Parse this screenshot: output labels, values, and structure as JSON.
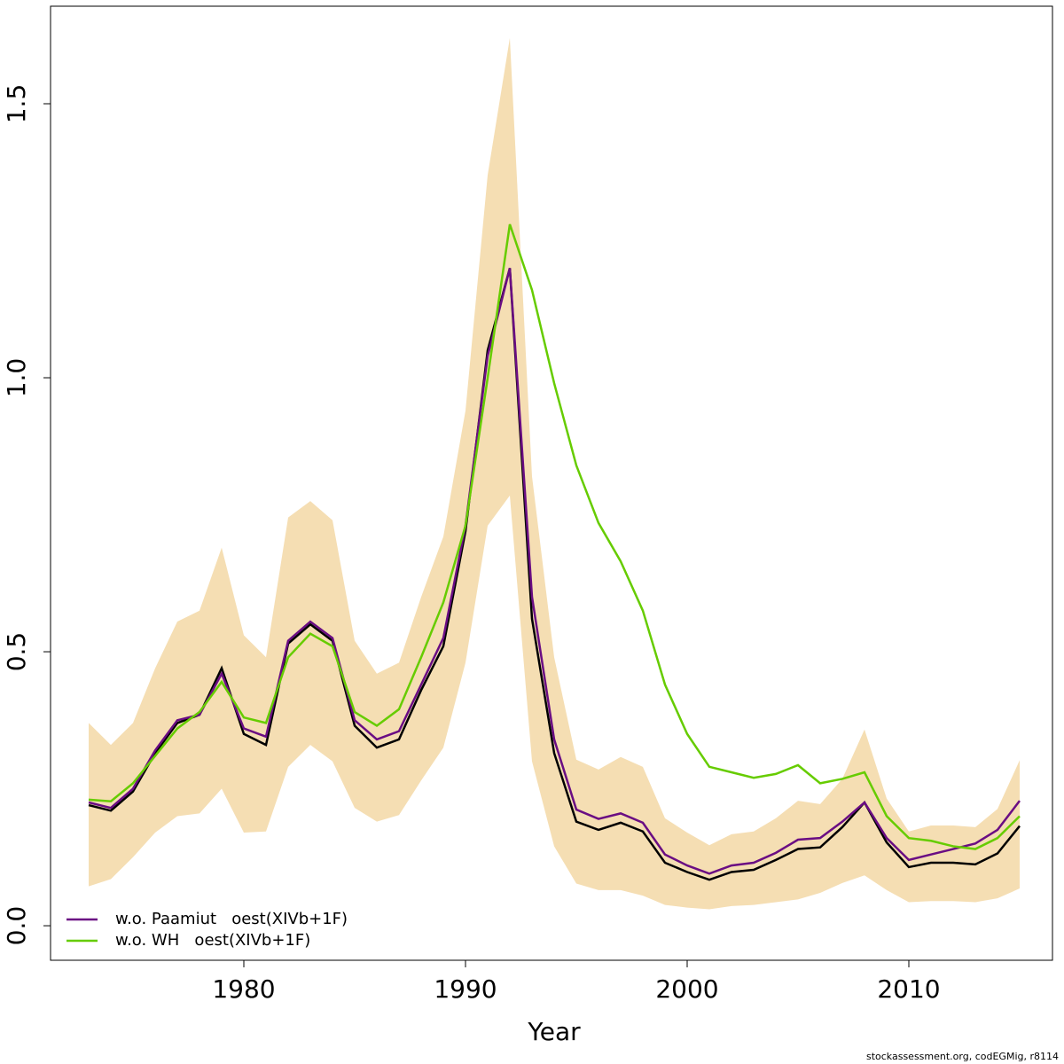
{
  "chart_data": {
    "type": "line",
    "xlabel": "Year",
    "footnote": "stockassessment.org, codEGMig, r8114",
    "x": [
      1973,
      1974,
      1975,
      1976,
      1977,
      1978,
      1979,
      1980,
      1981,
      1982,
      1983,
      1984,
      1985,
      1986,
      1987,
      1988,
      1989,
      1990,
      1991,
      1992,
      1993,
      1994,
      1995,
      1996,
      1997,
      1998,
      1999,
      2000,
      2001,
      2002,
      2003,
      2004,
      2005,
      2006,
      2007,
      2008,
      2009,
      2010,
      2011,
      2012,
      2013,
      2014,
      2015
    ],
    "band": {
      "color": "#f5deb3",
      "lower": [
        0.072,
        0.085,
        0.125,
        0.17,
        0.2,
        0.205,
        0.25,
        0.17,
        0.172,
        0.29,
        0.33,
        0.3,
        0.215,
        0.19,
        0.202,
        0.265,
        0.325,
        0.48,
        0.73,
        0.785,
        0.3,
        0.145,
        0.077,
        0.065,
        0.065,
        0.055,
        0.038,
        0.033,
        0.03,
        0.036,
        0.038,
        0.043,
        0.048,
        0.06,
        0.078,
        0.092,
        0.065,
        0.043,
        0.045,
        0.045,
        0.043,
        0.05,
        0.068
      ],
      "upper": [
        0.37,
        0.33,
        0.37,
        0.47,
        0.555,
        0.575,
        0.69,
        0.53,
        0.49,
        0.745,
        0.775,
        0.74,
        0.52,
        0.46,
        0.48,
        0.6,
        0.71,
        0.94,
        1.37,
        1.62,
        0.82,
        0.49,
        0.303,
        0.285,
        0.308,
        0.29,
        0.196,
        0.17,
        0.147,
        0.167,
        0.172,
        0.196,
        0.228,
        0.222,
        0.268,
        0.358,
        0.232,
        0.172,
        0.183,
        0.183,
        0.18,
        0.213,
        0.302
      ]
    },
    "series": [
      {
        "color": "#000000",
        "values": [
          0.22,
          0.21,
          0.245,
          0.315,
          0.37,
          0.385,
          0.47,
          0.35,
          0.33,
          0.515,
          0.55,
          0.52,
          0.365,
          0.325,
          0.34,
          0.43,
          0.51,
          0.72,
          1.05,
          1.2,
          0.56,
          0.315,
          0.19,
          0.175,
          0.188,
          0.172,
          0.115,
          0.098,
          0.084,
          0.098,
          0.102,
          0.12,
          0.14,
          0.143,
          0.18,
          0.225,
          0.152,
          0.107,
          0.115,
          0.115,
          0.112,
          0.132,
          0.182
        ]
      },
      {
        "name": "w.o. Paamiut   oest(XIVb+1F)",
        "color": "#6a0d83",
        "values": [
          0.225,
          0.215,
          0.25,
          0.32,
          0.375,
          0.385,
          0.46,
          0.36,
          0.345,
          0.52,
          0.555,
          0.525,
          0.375,
          0.34,
          0.355,
          0.44,
          0.525,
          0.73,
          1.04,
          1.2,
          0.6,
          0.34,
          0.212,
          0.195,
          0.205,
          0.188,
          0.13,
          0.11,
          0.095,
          0.11,
          0.115,
          0.133,
          0.157,
          0.16,
          0.19,
          0.225,
          0.16,
          0.12,
          0.13,
          0.14,
          0.15,
          0.175,
          0.228
        ]
      },
      {
        "name": "w.o. WH   oest(XIVb+1F)",
        "color": "#66cc00",
        "values": [
          0.23,
          0.227,
          0.26,
          0.31,
          0.36,
          0.39,
          0.445,
          0.38,
          0.37,
          0.49,
          0.533,
          0.51,
          0.39,
          0.365,
          0.395,
          0.49,
          0.59,
          0.73,
          1.0,
          1.28,
          1.16,
          0.99,
          0.84,
          0.735,
          0.665,
          0.575,
          0.44,
          0.35,
          0.29,
          0.28,
          0.27,
          0.277,
          0.293,
          0.26,
          0.268,
          0.28,
          0.2,
          0.16,
          0.155,
          0.145,
          0.14,
          0.16,
          0.2
        ]
      }
    ],
    "xlim": [
      1971.28,
      2016.48
    ],
    "ylim": [
      -0.063,
      1.678
    ],
    "xticks": [
      1980,
      1990,
      2000,
      2010
    ],
    "yticks": [
      {
        "value": 0,
        "label": "0.0"
      },
      0.5,
      {
        "value": 1,
        "label": "1.0"
      },
      1.5
    ],
    "legend": "bottom-left"
  }
}
